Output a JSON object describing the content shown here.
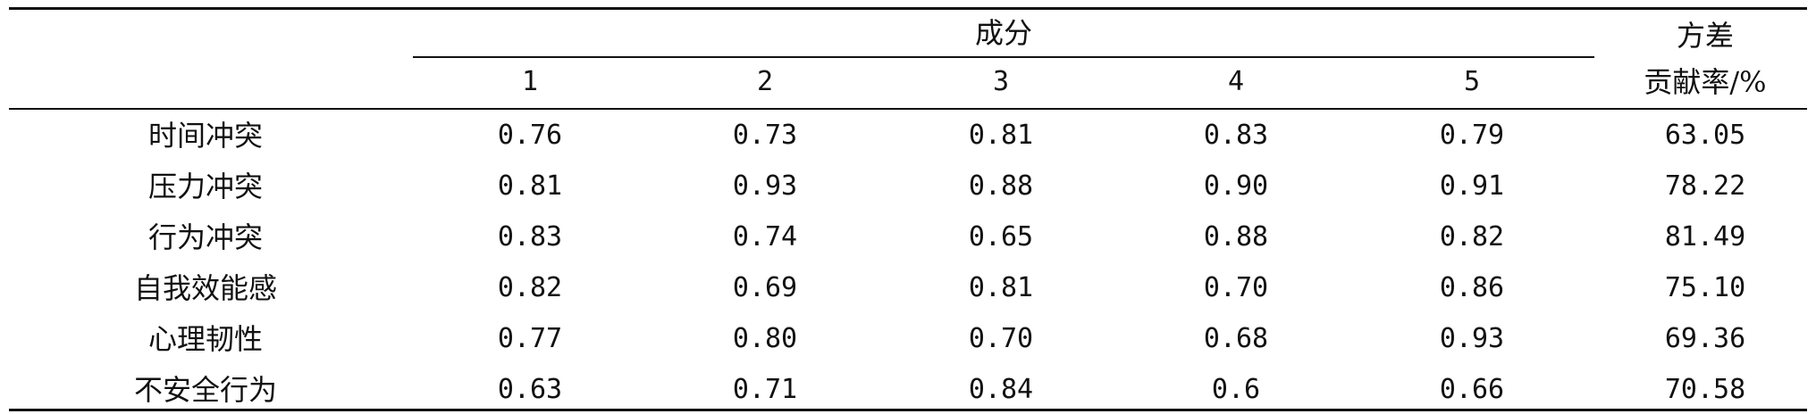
{
  "table": {
    "header": {
      "group_label": "成分",
      "components": [
        "1",
        "2",
        "3",
        "4",
        "5"
      ],
      "variance_line1": "方差",
      "variance_line2": "贡献率/%"
    },
    "rows": [
      {
        "label": "时间冲突",
        "values": [
          "0.76",
          "0.73",
          "0.81",
          "0.83",
          "0.79"
        ],
        "variance": "63.05"
      },
      {
        "label": "压力冲突",
        "values": [
          "0.81",
          "0.93",
          "0.88",
          "0.90",
          "0.91"
        ],
        "variance": "78.22"
      },
      {
        "label": "行为冲突",
        "values": [
          "0.83",
          "0.74",
          "0.65",
          "0.88",
          "0.82"
        ],
        "variance": "81.49"
      },
      {
        "label": "自我效能感",
        "values": [
          "0.82",
          "0.69",
          "0.81",
          "0.70",
          "0.86"
        ],
        "variance": "75.10"
      },
      {
        "label": "心理韧性",
        "values": [
          "0.77",
          "0.80",
          "0.70",
          "0.68",
          "0.93"
        ],
        "variance": "69.36"
      },
      {
        "label": "不安全行为",
        "values": [
          "0.63",
          "0.71",
          "0.84",
          "0.6",
          "0.66"
        ],
        "variance": "70.58"
      }
    ]
  }
}
